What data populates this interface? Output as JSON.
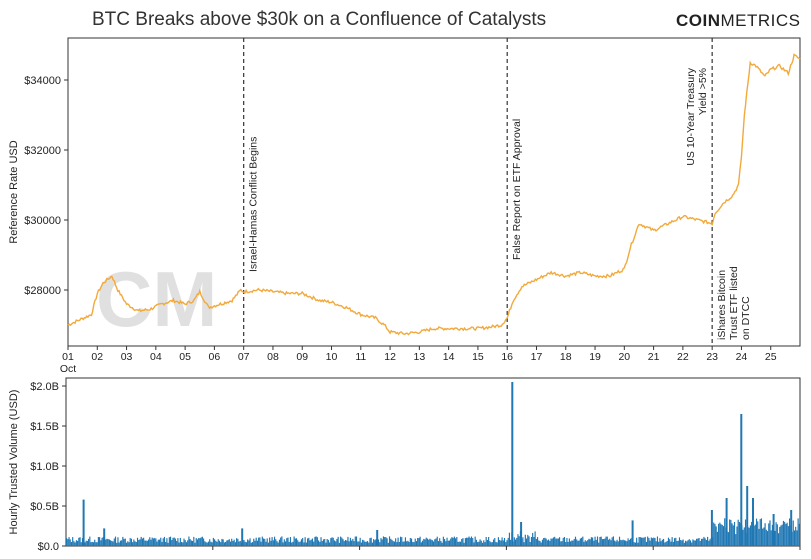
{
  "header": {
    "title": "BTC Breaks above $30k on a Confluence of Catalysts",
    "logo_bold": "COIN",
    "logo_light": "METRICS"
  },
  "watermark": "CM",
  "colors": {
    "price_line": "#f2a93b",
    "volume_bars": "#1f77b4",
    "event_line": "#333333",
    "watermark": "#c8c8c8"
  },
  "chart_data": [
    {
      "type": "line",
      "ylabel": "Reference Rate USD",
      "ylim": [
        26400,
        35200
      ],
      "xlim": [
        1,
        26
      ],
      "yticks": [
        28000,
        30000,
        32000,
        34000
      ],
      "ytick_labels": [
        "$28000",
        "$30000",
        "$32000",
        "$34000"
      ],
      "xticks": [
        1,
        2,
        3,
        4,
        5,
        6,
        7,
        8,
        9,
        10,
        11,
        12,
        13,
        14,
        15,
        16,
        17,
        18,
        19,
        20,
        21,
        22,
        23,
        24,
        25
      ],
      "xtick_labels": [
        "01",
        "02",
        "03",
        "04",
        "05",
        "06",
        "07",
        "08",
        "09",
        "10",
        "11",
        "12",
        "13",
        "14",
        "15",
        "16",
        "17",
        "18",
        "19",
        "20",
        "21",
        "22",
        "23",
        "24",
        "25"
      ],
      "x_month_label": "Oct",
      "series": [
        {
          "x": [
            1,
            1.4,
            1.8,
            2.0,
            2.2,
            2.5,
            2.7,
            3.0,
            3.4,
            3.8,
            4.2,
            4.6,
            5.0,
            5.3,
            5.5,
            5.8,
            6.2,
            6.6,
            6.9,
            7.0,
            7.5,
            8.0,
            8.5,
            9.0,
            9.3,
            9.6,
            10.0,
            10.5,
            11.0,
            11.5,
            11.8,
            12.0,
            12.5,
            13.0,
            13.5,
            14.0,
            14.5,
            15.0,
            15.5,
            15.8,
            16.0,
            16.2,
            16.5,
            17.0,
            17.5,
            18.0,
            18.5,
            19.0,
            19.5,
            20.0,
            20.2,
            20.5,
            21.0,
            21.5,
            22.0,
            22.5,
            23.0,
            23.1,
            23.4,
            23.7,
            23.9,
            24.0,
            24.1,
            24.3,
            24.5,
            24.8,
            25.0,
            25.3,
            25.6,
            25.8,
            26.0
          ],
          "values": [
            27000,
            27150,
            27300,
            27900,
            28200,
            28400,
            28000,
            27600,
            27400,
            27450,
            27600,
            27700,
            27600,
            27700,
            27950,
            27500,
            27600,
            27700,
            28000,
            27950,
            28000,
            27950,
            27900,
            27900,
            27800,
            27700,
            27650,
            27500,
            27300,
            27200,
            27000,
            26800,
            26750,
            26800,
            26900,
            26900,
            26900,
            26900,
            26950,
            27000,
            27200,
            27700,
            28100,
            28300,
            28500,
            28400,
            28500,
            28400,
            28400,
            28600,
            29200,
            29900,
            29700,
            29900,
            30100,
            30000,
            29900,
            30200,
            30500,
            30700,
            31000,
            31800,
            33000,
            34500,
            34400,
            34100,
            34300,
            34400,
            34200,
            34700,
            34600
          ]
        }
      ],
      "events": [
        {
          "x": 7,
          "label": "Israel-Hamas Conflict Begins"
        },
        {
          "x": 16,
          "label": "False Report on ETF Approval"
        },
        {
          "x": 23,
          "label_lines": [
            "US 10-Year Treasury",
            "Yield >5%"
          ]
        },
        {
          "x": 23,
          "label_lines": [
            "iShares Bitcoin",
            "Trust ETF listed",
            "on DTCC"
          ]
        }
      ]
    },
    {
      "type": "bar",
      "ylabel": "Hourly Trusted Volume (USD)",
      "ylim": [
        0,
        2.1
      ],
      "yticks": [
        0,
        0.5,
        1.0,
        1.5,
        2.0
      ],
      "ytick_labels": [
        "$0.0",
        "$0.5B",
        "$1.0B",
        "$1.5B",
        "$2.0B"
      ],
      "xlim": [
        1,
        26
      ],
      "spikes": [
        {
          "x": 1.6,
          "value": 0.58
        },
        {
          "x": 2.3,
          "value": 0.22
        },
        {
          "x": 7.0,
          "value": 0.22
        },
        {
          "x": 11.6,
          "value": 0.2
        },
        {
          "x": 16.2,
          "value": 2.05
        },
        {
          "x": 16.5,
          "value": 0.3
        },
        {
          "x": 20.3,
          "value": 0.32
        },
        {
          "x": 23.0,
          "value": 0.45
        },
        {
          "x": 23.5,
          "value": 0.6
        },
        {
          "x": 24.0,
          "value": 1.65
        },
        {
          "x": 24.2,
          "value": 0.75
        },
        {
          "x": 24.4,
          "value": 0.6
        },
        {
          "x": 25.1,
          "value": 0.4
        },
        {
          "x": 25.7,
          "value": 0.45
        }
      ]
    }
  ]
}
